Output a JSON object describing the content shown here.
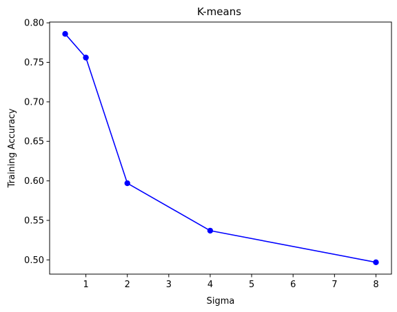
{
  "chart_data": {
    "type": "line",
    "title": "K-means",
    "xlabel": "Sigma",
    "ylabel": "Training Accuracy",
    "x": [
      0.5,
      1,
      2,
      4,
      8
    ],
    "series": [
      {
        "values": [
          0.786,
          0.756,
          0.597,
          0.537,
          0.497
        ]
      }
    ],
    "xlim": [
      0.125,
      8.375
    ],
    "ylim": [
      0.482,
      0.801
    ],
    "xticks": [
      1,
      2,
      3,
      4,
      5,
      6,
      7,
      8
    ],
    "xtick_labels": [
      "1",
      "2",
      "3",
      "4",
      "5",
      "6",
      "7",
      "8"
    ],
    "yticks": [
      0.5,
      0.55,
      0.6,
      0.65,
      0.7,
      0.75,
      0.8
    ],
    "ytick_labels": [
      "0.50",
      "0.55",
      "0.60",
      "0.65",
      "0.70",
      "0.75",
      "0.80"
    ],
    "grid": false,
    "line_color": "#0000ff",
    "marker": "circle"
  }
}
